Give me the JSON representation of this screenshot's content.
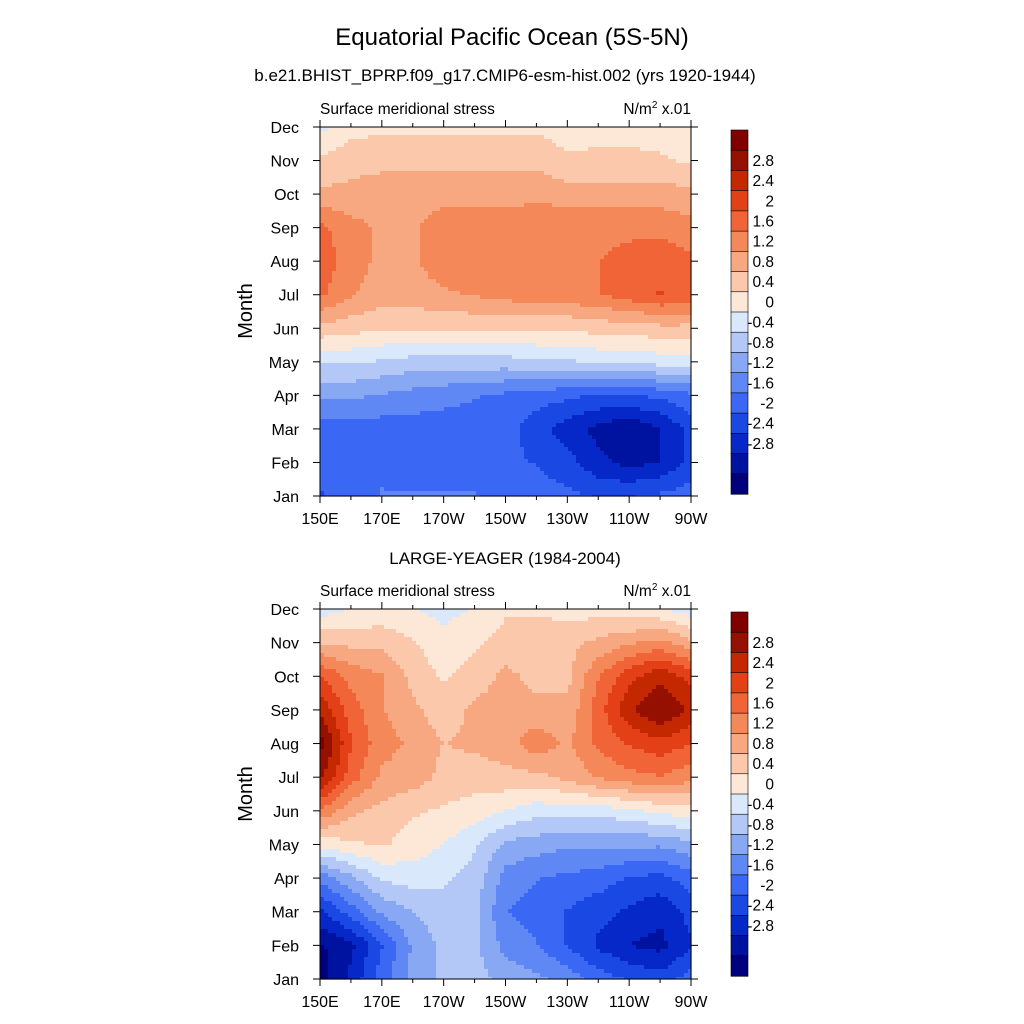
{
  "title": "Equatorial Pacific Ocean (5S-5N)",
  "colors": [
    "#00007f",
    "#0012a0",
    "#0628c8",
    "#1a48e2",
    "#3a68f4",
    "#6088f4",
    "#88a8f4",
    "#b4c8f8",
    "#dae8fc",
    "#fde8d8",
    "#fcc8ac",
    "#f8a880",
    "#f48858",
    "#f06438",
    "#e44018",
    "#c42800",
    "#961000",
    "#800000"
  ],
  "chart_data": [
    {
      "type": "contour",
      "subtitle": "b.e21.BHIST_BPRP.f09_g17.CMIP6-esm-hist.002 (yrs 1920-1944)",
      "left_label": "Surface meridional stress",
      "units": "N/m",
      "units_sup": "2",
      "units_scale": " x.01",
      "ylabel": "Month",
      "x_ticks": [
        "150E",
        "170E",
        "170W",
        "150W",
        "130W",
        "110W",
        "90W"
      ],
      "y_ticks": [
        "Jan",
        "Feb",
        "Mar",
        "Apr",
        "May",
        "Jun",
        "Jul",
        "Aug",
        "Sep",
        "Oct",
        "Nov",
        "Dec"
      ],
      "colorbar_labels": [
        "2.8",
        "2.4",
        "2",
        "1.6",
        "1.2",
        "0.8",
        "0.4",
        "0",
        "-0.4",
        "-0.8",
        "-1.2",
        "-1.6",
        "-2",
        "-2.4",
        "-2.8"
      ],
      "zlim": [
        -3.2,
        3.2
      ],
      "columns": [
        "150E",
        "160E",
        "170E",
        "180",
        "170W",
        "160W",
        "150W",
        "140W",
        "130W",
        "120W",
        "110W",
        "100W",
        "90W"
      ],
      "values": [
        [
          -1.8,
          -1.6,
          -1.4,
          -1.4,
          -1.4,
          -1.4,
          -1.5,
          -1.6,
          -1.7,
          -1.8,
          -1.8,
          -1.7,
          -1.6
        ],
        [
          -1.7,
          -1.5,
          -1.5,
          -1.6,
          -1.6,
          -1.6,
          -1.7,
          -1.8,
          -2.0,
          -2.4,
          -2.6,
          -2.5,
          -2.0
        ],
        [
          -1.6,
          -1.6,
          -1.6,
          -1.6,
          -1.6,
          -1.6,
          -1.6,
          -2.0,
          -2.3,
          -2.6,
          -2.8,
          -2.5,
          -2.0
        ],
        [
          -1.0,
          -1.0,
          -1.1,
          -1.2,
          -1.3,
          -1.4,
          -1.5,
          -1.6,
          -1.7,
          -1.8,
          -1.8,
          -1.7,
          -1.5
        ],
        [
          -0.3,
          -0.3,
          -0.4,
          -0.5,
          -0.5,
          -0.5,
          -0.5,
          -0.4,
          -0.4,
          -0.3,
          -0.3,
          -0.2,
          -0.2
        ],
        [
          0.6,
          0.5,
          0.4,
          0.4,
          0.4,
          0.4,
          0.4,
          0.4,
          0.4,
          0.5,
          0.5,
          0.6,
          0.6
        ],
        [
          1.5,
          1.1,
          0.9,
          0.9,
          1.0,
          1.1,
          1.2,
          1.3,
          1.3,
          1.4,
          1.6,
          1.8,
          1.7
        ],
        [
          1.7,
          1.2,
          1.0,
          1.0,
          1.3,
          1.4,
          1.4,
          1.4,
          1.4,
          1.4,
          1.6,
          1.7,
          1.5
        ],
        [
          1.5,
          1.2,
          1.0,
          1.0,
          1.3,
          1.3,
          1.3,
          1.3,
          1.3,
          1.3,
          1.3,
          1.3,
          1.2
        ],
        [
          0.8,
          0.8,
          0.9,
          0.9,
          0.9,
          0.9,
          0.9,
          1.0,
          0.9,
          0.9,
          0.9,
          0.9,
          0.8
        ],
        [
          0.4,
          0.6,
          0.6,
          0.6,
          0.6,
          0.6,
          0.6,
          0.6,
          0.4,
          0.4,
          0.4,
          0.4,
          0.3
        ],
        [
          -0.1,
          0.2,
          0.3,
          0.3,
          0.3,
          0.3,
          0.3,
          0.3,
          0.2,
          0.3,
          0.3,
          0.2,
          0.1
        ]
      ]
    },
    {
      "type": "contour",
      "subtitle": "LARGE-YEAGER (1984-2004)",
      "left_label": "Surface meridional stress",
      "units": "N/m",
      "units_sup": "2",
      "units_scale": " x.01",
      "ylabel": "Month",
      "x_ticks": [
        "150E",
        "170E",
        "170W",
        "150W",
        "130W",
        "110W",
        "90W"
      ],
      "y_ticks": [
        "Jan",
        "Feb",
        "Mar",
        "Apr",
        "May",
        "Jun",
        "Jul",
        "Aug",
        "Sep",
        "Oct",
        "Nov",
        "Dec"
      ],
      "colorbar_labels": [
        "2.8",
        "2.4",
        "2",
        "1.6",
        "1.2",
        "0.8",
        "0.4",
        "0",
        "-0.4",
        "-0.8",
        "-1.2",
        "-1.6",
        "-2",
        "-2.4",
        "-2.8"
      ],
      "zlim": [
        -3.2,
        3.2
      ],
      "columns": [
        "150E",
        "160E",
        "170E",
        "180",
        "170W",
        "160W",
        "150W",
        "140W",
        "130W",
        "120W",
        "110W",
        "100W",
        "90W"
      ],
      "values": [
        [
          -3.0,
          -2.4,
          -1.6,
          -1.0,
          -0.6,
          -0.6,
          -0.8,
          -1.0,
          -1.2,
          -1.6,
          -1.8,
          -2.0,
          -1.6
        ],
        [
          -2.9,
          -2.6,
          -1.8,
          -1.0,
          -0.6,
          -0.6,
          -1.2,
          -1.4,
          -1.8,
          -2.2,
          -2.5,
          -2.6,
          -2.2
        ],
        [
          -2.2,
          -1.6,
          -1.0,
          -0.7,
          -0.5,
          -0.6,
          -1.4,
          -1.6,
          -1.8,
          -2.0,
          -2.2,
          -2.4,
          -2.0
        ],
        [
          -1.3,
          -0.8,
          -0.3,
          -0.2,
          -0.3,
          -0.5,
          -1.2,
          -1.4,
          -1.5,
          -1.6,
          -1.8,
          -1.9,
          -1.6
        ],
        [
          0.1,
          0.3,
          0.4,
          0.2,
          0.0,
          -0.3,
          -0.8,
          -0.9,
          -1.0,
          -1.0,
          -1.0,
          -1.0,
          -0.8
        ],
        [
          1.4,
          0.8,
          0.6,
          0.4,
          0.3,
          0.2,
          0.0,
          -0.2,
          -0.2,
          -0.2,
          -0.1,
          0.1,
          0.2
        ],
        [
          2.6,
          1.6,
          1.0,
          0.9,
          0.6,
          0.5,
          0.6,
          0.6,
          0.8,
          1.1,
          1.3,
          1.4,
          1.2
        ],
        [
          3.0,
          1.8,
          1.2,
          1.0,
          0.7,
          0.8,
          0.9,
          1.3,
          1.0,
          1.5,
          1.8,
          2.0,
          1.8
        ],
        [
          2.4,
          1.6,
          1.1,
          0.8,
          0.5,
          0.8,
          0.9,
          0.8,
          0.8,
          1.6,
          2.4,
          2.9,
          2.4
        ],
        [
          1.8,
          1.3,
          1.1,
          0.6,
          0.3,
          0.5,
          0.8,
          0.6,
          0.6,
          1.4,
          2.0,
          2.4,
          2.0
        ],
        [
          0.7,
          0.6,
          0.6,
          0.4,
          0.1,
          0.3,
          0.5,
          0.6,
          0.6,
          0.8,
          1.0,
          1.2,
          0.8
        ],
        [
          -0.2,
          0.0,
          0.1,
          0.0,
          -0.1,
          0.0,
          0.3,
          0.3,
          0.2,
          0.2,
          0.1,
          0.0,
          -0.2
        ]
      ]
    }
  ]
}
